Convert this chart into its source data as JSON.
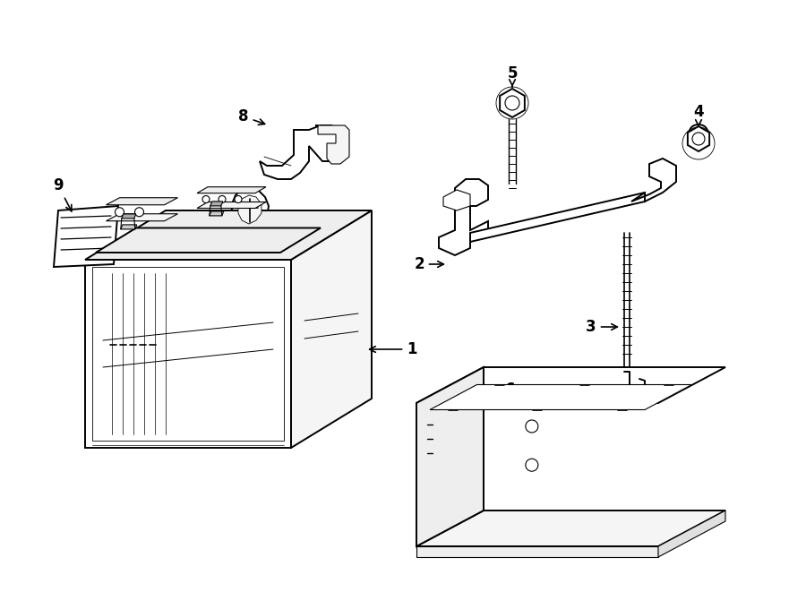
{
  "bg_color": "#ffffff",
  "line_color": "#000000",
  "figsize": [
    9.0,
    6.61
  ],
  "dpi": 100,
  "lw_main": 1.4,
  "lw_thin": 0.8,
  "label_fontsize": 12,
  "label_color": "#000000",
  "face_white": "#ffffff",
  "face_light": "#f5f5f5",
  "face_mid": "#eeeeee",
  "face_dark": "#e0e0e0"
}
